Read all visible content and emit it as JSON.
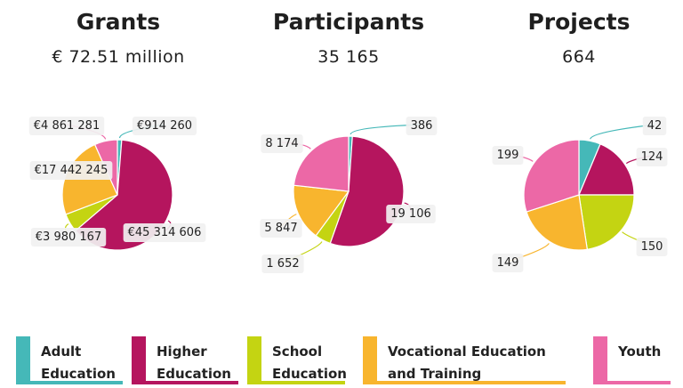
{
  "categories": [
    {
      "key": "adult",
      "label": "Adult Education",
      "color": "#45B8B8"
    },
    {
      "key": "higher",
      "label": "Higher Education",
      "color": "#B5155E"
    },
    {
      "key": "school",
      "label": "School Education",
      "color": "#C4D412"
    },
    {
      "key": "vet",
      "label": "Vocational Education and Training",
      "color": "#F8B52E"
    },
    {
      "key": "youth",
      "label": "Youth",
      "color": "#EC68A6"
    }
  ],
  "legend": {
    "adult_l1": "Adult",
    "adult_l2": "Education",
    "higher_l1": "Higher",
    "higher_l2": "Education",
    "school_l1": "School",
    "school_l2": "Education",
    "vet_l1": "Vocational Education",
    "vet_l2": "and Training",
    "youth_l1": "Youth"
  },
  "panels": {
    "grants": {
      "title": "Grants",
      "stat": "€ 72.51 million"
    },
    "participants": {
      "title": "Participants",
      "stat": "35 165"
    },
    "projects": {
      "title": "Projects",
      "stat": "664"
    }
  },
  "chart_data": [
    {
      "type": "pie",
      "title": "Grants",
      "categories": [
        "Adult Education",
        "Higher Education",
        "School Education",
        "Vocational Education and Training",
        "Youth"
      ],
      "values": [
        914260,
        45314606,
        3980167,
        17442245,
        4861281
      ],
      "data_labels": [
        "€914 260",
        "€45 314 606",
        "€3 980 167",
        "€17 442 245",
        "€4 861 281"
      ]
    },
    {
      "type": "pie",
      "title": "Participants",
      "categories": [
        "Adult Education",
        "Higher Education",
        "School Education",
        "Vocational Education and Training",
        "Youth"
      ],
      "values": [
        386,
        19106,
        1652,
        5847,
        8174
      ],
      "data_labels": [
        "386",
        "19 106",
        "1 652",
        "5 847",
        "8 174"
      ]
    },
    {
      "type": "pie",
      "title": "Projects",
      "categories": [
        "Adult Education",
        "Higher Education",
        "School Education",
        "Vocational Education and Training",
        "Youth"
      ],
      "values": [
        42,
        124,
        150,
        149,
        199
      ],
      "data_labels": [
        "42",
        "124",
        "150",
        "149",
        "199"
      ]
    }
  ]
}
